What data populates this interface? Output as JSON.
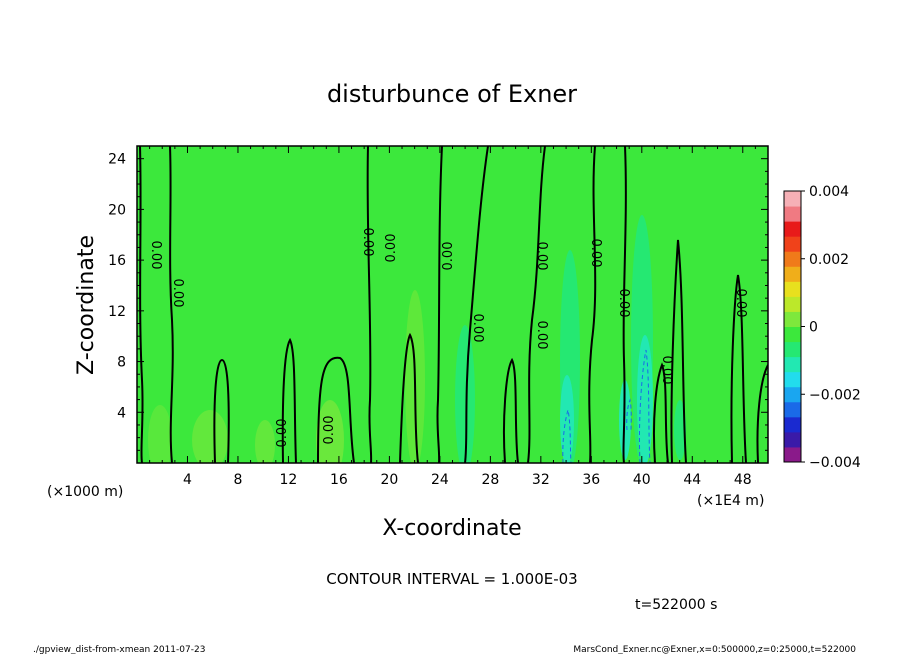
{
  "chart_data": {
    "type": "heatmap",
    "title": "disturbunce of Exner",
    "xlabel": "X-coordinate",
    "ylabel": "Z-coordinate",
    "x_unit_left": "(×1000 m)",
    "x_unit_right": "(×1E4 m)",
    "xlim": [
      0,
      50
    ],
    "ylim": [
      0,
      25
    ],
    "x_ticks": [
      "4",
      "8",
      "12",
      "16",
      "20",
      "24",
      "28",
      "32",
      "36",
      "40",
      "44",
      "48"
    ],
    "y_ticks": [
      "4",
      "8",
      "12",
      "16",
      "20",
      "24"
    ],
    "colorbar": {
      "range": [
        -0.004,
        0.004
      ],
      "tick_labels": [
        "0.004",
        "0.002",
        "0",
        "−0.002",
        "−0.004"
      ],
      "colors": [
        "#8a1a8a",
        "#3a1aa8",
        "#1a2ad0",
        "#1a6ae8",
        "#1aa6f0",
        "#22dced",
        "#22e8b2",
        "#25e872",
        "#3ce83c",
        "#7ee83c",
        "#bce82a",
        "#e8e01e",
        "#f0ae1a",
        "#f07a1a",
        "#f0421a",
        "#e81a1a",
        "#f07a82",
        "#f6b0b6"
      ]
    },
    "contour_labels": [
      "0.00"
    ],
    "contour_interval_text": "CONTOUR INTERVAL = 1.000E-03",
    "time_text": "t=522000 s",
    "footer_left": "./gpview_dist-from-xmean 2011-07-23",
    "footer_right": "MarsCond_Exner.nc@Exner,x=0:500000,z=0:25000,t=522000"
  }
}
